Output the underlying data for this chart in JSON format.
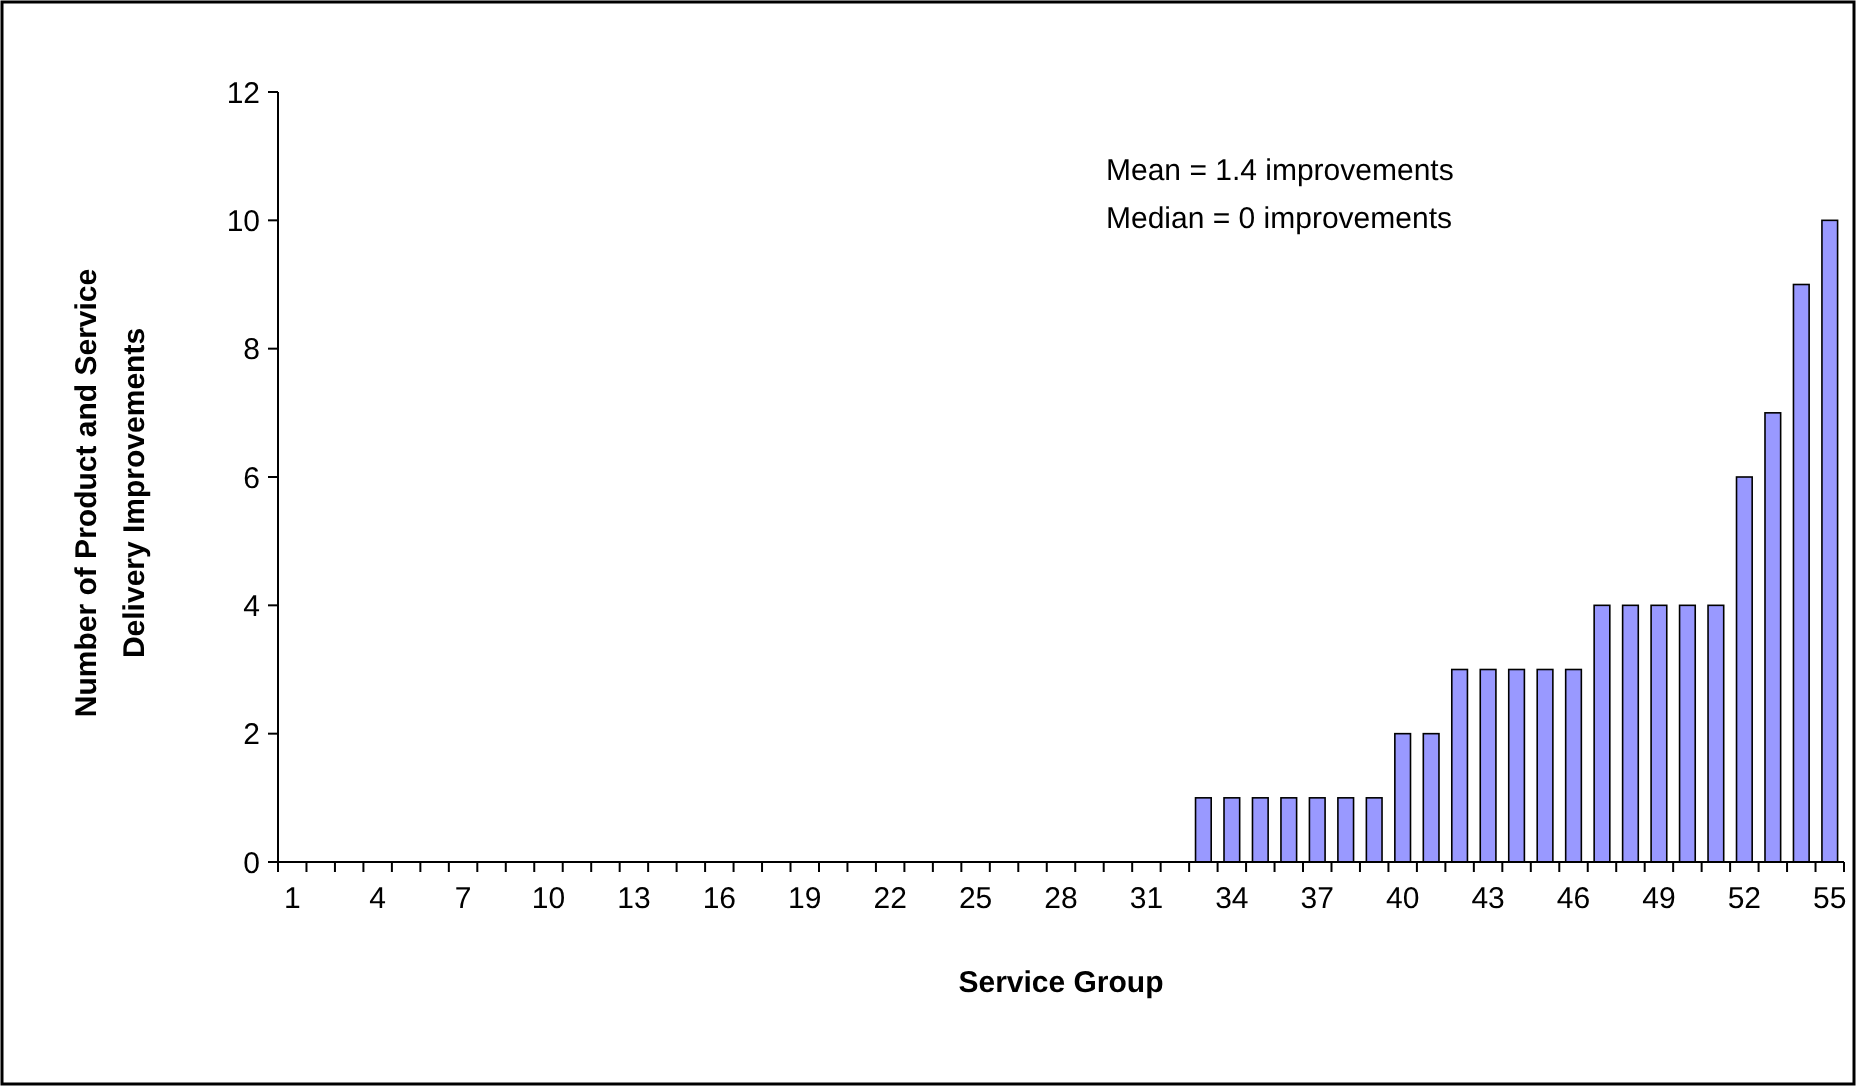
{
  "chart_data": {
    "type": "bar",
    "xlabel": "Service Group",
    "ylabel": "Number of Product and Service Delivery Improvements",
    "categories": [
      "1",
      null,
      null,
      "4",
      null,
      null,
      "7",
      null,
      null,
      "10",
      null,
      null,
      "13",
      null,
      null,
      "16",
      null,
      null,
      "19",
      null,
      null,
      "22",
      null,
      null,
      "25",
      null,
      null,
      "28",
      null,
      null,
      "31",
      null,
      null,
      "34",
      null,
      null,
      "37",
      null,
      null,
      "40",
      null,
      null,
      "43",
      null,
      null,
      "46",
      null,
      null,
      "49",
      null,
      null,
      "52",
      null,
      null,
      "55"
    ],
    "values": [
      0,
      0,
      0,
      0,
      0,
      0,
      0,
      0,
      0,
      0,
      0,
      0,
      0,
      0,
      0,
      0,
      0,
      0,
      0,
      0,
      0,
      0,
      0,
      0,
      0,
      0,
      0,
      0,
      0,
      0,
      0,
      0,
      1,
      1,
      1,
      1,
      1,
      1,
      1,
      2,
      2,
      3,
      3,
      3,
      3,
      3,
      4,
      4,
      4,
      4,
      4,
      6,
      7,
      9,
      10
    ],
    "color": "#9999ff",
    "ylim": [
      0,
      12
    ],
    "yticks": [
      0,
      2,
      4,
      6,
      8,
      10,
      12
    ],
    "grid": false,
    "annotations": [
      "Mean = 1.4 improvements",
      "Median = 0 improvements"
    ]
  }
}
